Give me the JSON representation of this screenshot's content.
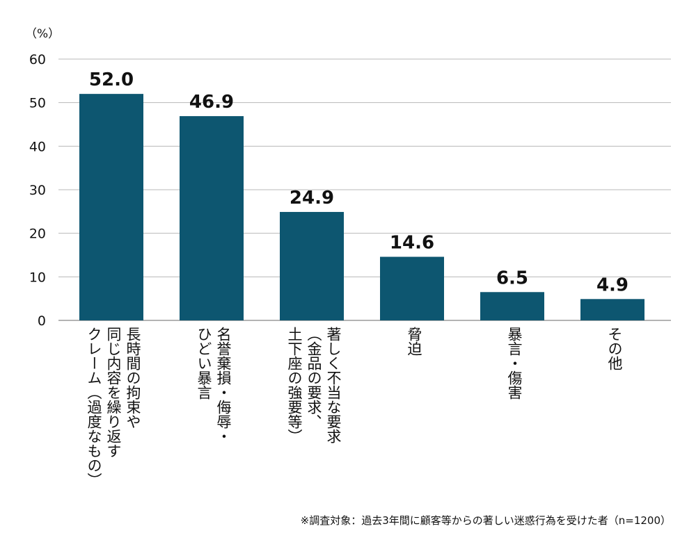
{
  "chart_data": {
    "type": "bar",
    "unit_label": "（%）",
    "ylim": [
      0,
      60
    ],
    "yticks": [
      "0",
      "10",
      "20",
      "30",
      "40",
      "50",
      "60"
    ],
    "grid": true,
    "bar_color": "#0d5670",
    "categories": [
      {
        "lines": [
          "長時間の拘束や",
          "同じ内容を繰り返す",
          "クレーム（過度なもの）"
        ]
      },
      {
        "lines": [
          "名誉棄損・侮辱・",
          "ひどい暴言"
        ]
      },
      {
        "lines": [
          "著しく不当な要求",
          "（金品の要求、",
          "土下座の強要等）"
        ]
      },
      {
        "lines": [
          "脅迫"
        ]
      },
      {
        "lines": [
          "暴言・傷害"
        ]
      },
      {
        "lines": [
          "その他"
        ]
      }
    ],
    "values": [
      52.0,
      46.9,
      24.9,
      14.6,
      6.5,
      4.9
    ],
    "value_labels": [
      "52.0",
      "46.9",
      "24.9",
      "14.6",
      "6.5",
      "4.9"
    ]
  },
  "footnote": "※調査対象：過去3年間に顧客等からの著しい迷惑行為を受けた者（n=1200）"
}
